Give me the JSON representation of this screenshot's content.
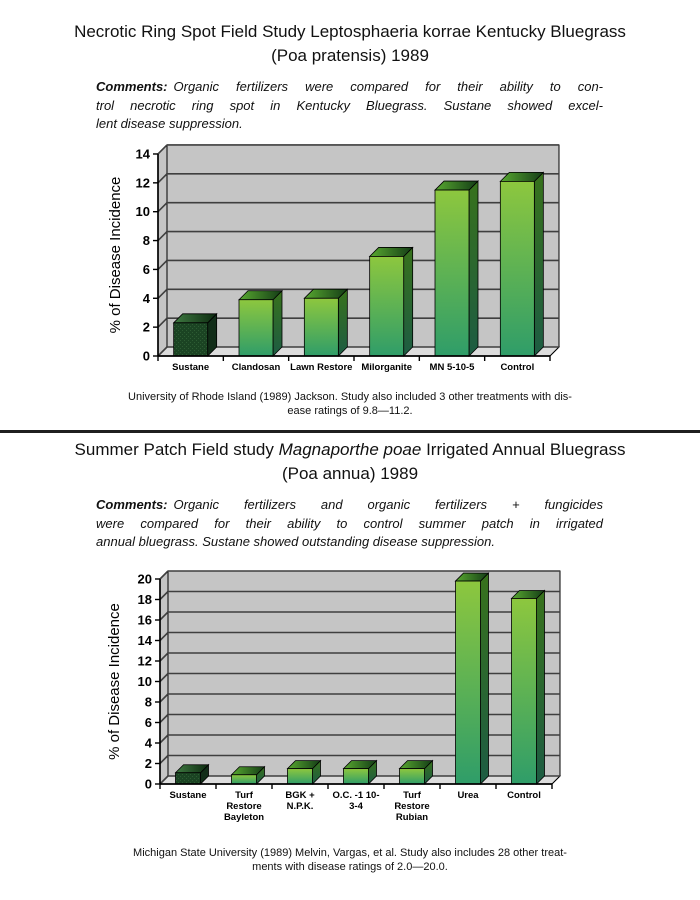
{
  "page": {
    "background": "#ffffff",
    "divider_color": "#1f1f1f"
  },
  "sections": [
    {
      "title": {
        "pre": "Necrotic Ring Spot Field Study Leptosphaeria korrae Kentucky Bluegrass",
        "italic": "",
        "post": "",
        "line2": "(Poa pratensis) 1989"
      },
      "comments": {
        "label": "Comments:",
        "lines": [
          "Organic fertilizers were compared for their ability to con-",
          "trol necrotic ring spot in Kentucky Bluegrass. Sustane showed excel-",
          "lent disease suppression."
        ]
      },
      "footnote_lines": [
        "University of Rhode Island (1989) Jackson. Study also included 3 other treatments with dis-",
        "ease ratings of 9.8—11.2."
      ]
    },
    {
      "title": {
        "pre": "Summer Patch Field study ",
        "italic": "Magnaporthe poae",
        "post": " Irrigated Annual Bluegrass",
        "line2": "(Poa annua) 1989"
      },
      "comments": {
        "label": "Comments:",
        "lines": [
          "Organic fertilizers and organic fertilizers + fungicides",
          "were compared for their ability to control summer patch in irrigated",
          "annual bluegrass. Sustane showed outstanding disease suppression."
        ]
      },
      "footnote_lines": [
        "Michigan State University (1989) Melvin, Vargas, et al. Study also includes 28 other treat-",
        "ments with disease ratings of 2.0—20.0."
      ]
    }
  ],
  "chart_data": [
    {
      "type": "bar",
      "variant": "3d-column",
      "title": "Necrotic Ring Spot Field Study Leptosphaeria korrae Kentucky Bluegrass (Poa pratensis) 1989",
      "xlabel": "",
      "ylabel": "% of Disease Incidence",
      "ylim": [
        0,
        14
      ],
      "ystep": 2,
      "grid": true,
      "legend": false,
      "categories": [
        "Sustane",
        "Clandosan",
        "Lawn Restore",
        "Milorganite",
        "MN 5-10-5",
        "Control"
      ],
      "category_label_lines": [
        [
          "Sustane"
        ],
        [
          "Clandosan"
        ],
        [
          "Lawn Restore"
        ],
        [
          "Milorganite"
        ],
        [
          "MN 5-10-5"
        ],
        [
          "Control"
        ]
      ],
      "values": [
        2.3,
        3.9,
        4.0,
        6.9,
        11.5,
        12.1
      ],
      "dark_bar_index": 0
    },
    {
      "type": "bar",
      "variant": "3d-column",
      "title": "Summer Patch Field study Magnaporthe poae Irrigated Annual Bluegrass (Poa annua) 1989",
      "xlabel": "",
      "ylabel": "% of Disease Incidence",
      "ylim": [
        0,
        20
      ],
      "ystep": 2,
      "grid": true,
      "legend": false,
      "categories": [
        "Sustane",
        "Turf Restore Bayleton",
        "BGK + N.P.K.",
        "O.C. -1 10-3-4",
        "Turf Restore Rubian",
        "Urea",
        "Control"
      ],
      "category_label_lines": [
        [
          "Sustane"
        ],
        [
          "Turf",
          "Restore",
          "Bayleton"
        ],
        [
          "BGK +",
          "N.P.K."
        ],
        [
          "O.C. -1 10-",
          "3-4"
        ],
        [
          "Turf",
          "Restore",
          "Rubian"
        ],
        [
          "Urea"
        ],
        [
          "Control"
        ]
      ],
      "values": [
        1.1,
        0.9,
        1.5,
        1.5,
        1.5,
        19.8,
        18.1
      ],
      "dark_bar_index": 0
    }
  ],
  "chart_style": {
    "wall": "#c5c5c5",
    "floor": "#dcdcdc",
    "gridline": "#3f3f3f",
    "outline": "#000000",
    "axis": "#000000",
    "bar_front_top": "#8dc73e",
    "bar_front_bottom": "#2f9d69",
    "bar_side_top": "#38721c",
    "bar_side_bottom": "#1d5c43",
    "bar_top_left": "#58a930",
    "bar_top_right": "#143c16",
    "dark_front": "#1b4423",
    "dark_front_dot": "#2d5c33",
    "dark_side": "#112d18",
    "dark_top_left": "#3f7a42",
    "dark_top_right": "#0d2b10"
  }
}
